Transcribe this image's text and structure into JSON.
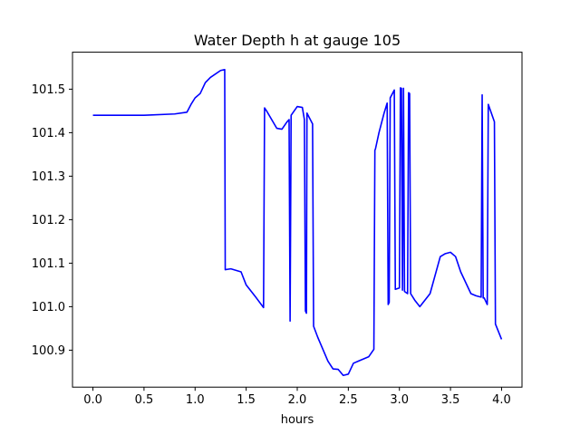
{
  "chart_data": {
    "type": "line",
    "title": "Water Depth h at gauge 105",
    "xlabel": "hours",
    "ylabel": "",
    "xlim": [
      -0.2,
      4.2
    ],
    "ylim": [
      100.815,
      101.585
    ],
    "x_ticks": [
      0.0,
      0.5,
      1.0,
      1.5,
      2.0,
      2.5,
      3.0,
      3.5,
      4.0
    ],
    "x_tick_labels": [
      "0.0",
      "0.5",
      "1.0",
      "1.5",
      "2.0",
      "2.5",
      "3.0",
      "3.5",
      "4.0"
    ],
    "y_ticks": [
      100.9,
      101.0,
      101.1,
      101.2,
      101.3,
      101.4,
      101.5
    ],
    "y_tick_labels": [
      "100.9",
      "101.0",
      "101.1",
      "101.2",
      "101.3",
      "101.4",
      "101.5"
    ],
    "grid": false,
    "legend": "none",
    "series": [
      {
        "color": "#0000ff",
        "x": [
          0.0,
          0.5,
          0.8,
          0.92,
          0.96,
          1.0,
          1.05,
          1.1,
          1.15,
          1.25,
          1.29,
          1.295,
          1.35,
          1.45,
          1.5,
          1.6,
          1.67,
          1.68,
          1.7,
          1.8,
          1.85,
          1.9,
          1.92,
          1.93,
          1.94,
          2.0,
          2.05,
          2.07,
          2.08,
          2.09,
          2.095,
          2.15,
          2.16,
          2.2,
          2.3,
          2.35,
          2.4,
          2.45,
          2.5,
          2.55,
          2.6,
          2.7,
          2.75,
          2.76,
          2.765,
          2.8,
          2.85,
          2.88,
          2.89,
          2.9,
          2.91,
          2.95,
          2.96,
          3.0,
          3.01,
          3.02,
          3.03,
          3.04,
          3.05,
          3.08,
          3.09,
          3.1,
          3.11,
          3.15,
          3.2,
          3.3,
          3.4,
          3.45,
          3.5,
          3.55,
          3.6,
          3.7,
          3.75,
          3.8,
          3.81,
          3.82,
          3.83,
          3.86,
          3.87,
          3.93,
          3.94,
          4.0
        ],
        "values": [
          101.44,
          101.44,
          101.443,
          101.447,
          101.465,
          101.48,
          101.49,
          101.515,
          101.527,
          101.543,
          101.545,
          101.085,
          101.087,
          101.08,
          101.05,
          101.02,
          100.998,
          101.457,
          101.45,
          101.41,
          101.408,
          101.425,
          101.43,
          100.967,
          101.44,
          101.46,
          101.458,
          101.43,
          100.99,
          100.985,
          101.445,
          101.42,
          100.955,
          100.93,
          100.875,
          100.857,
          100.856,
          100.842,
          100.845,
          100.87,
          100.875,
          100.885,
          100.902,
          101.36,
          101.362,
          101.4,
          101.445,
          101.468,
          101.005,
          101.01,
          101.48,
          101.498,
          101.04,
          101.043,
          101.503,
          101.502,
          101.038,
          101.502,
          101.035,
          101.03,
          101.492,
          101.49,
          101.03,
          101.015,
          101.0,
          101.03,
          101.115,
          101.122,
          101.125,
          101.115,
          101.08,
          101.03,
          101.025,
          101.022,
          101.487,
          101.02,
          101.02,
          101.005,
          101.465,
          101.425,
          100.96,
          100.925
        ]
      }
    ]
  }
}
